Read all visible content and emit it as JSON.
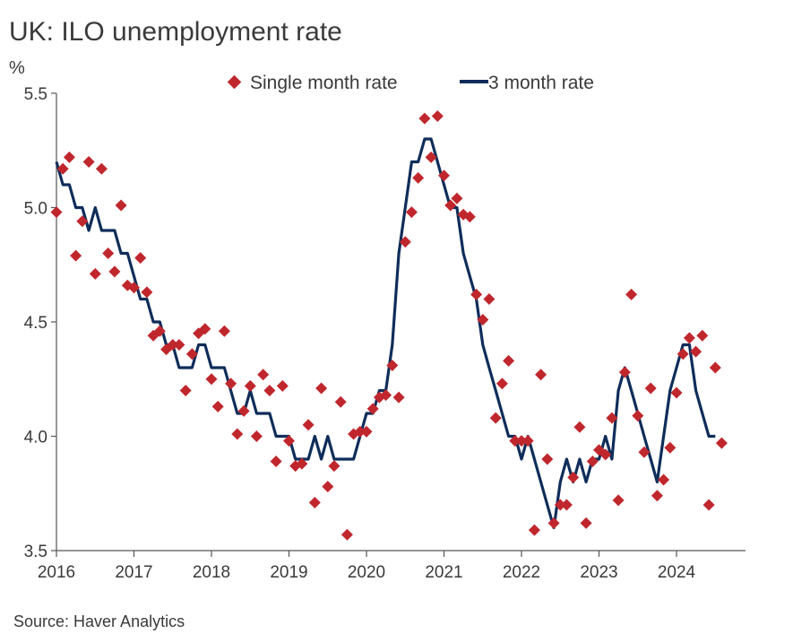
{
  "chart_data": {
    "type": "line",
    "title": "UK: ILO unemployment rate",
    "ylabel": "%",
    "xlabel": "",
    "source": "Source: Haver Analytics",
    "ylim": [
      3.5,
      5.5
    ],
    "xlim": [
      2016.0,
      2024.9
    ],
    "yticks": [
      "3.5",
      "4.0",
      "4.5",
      "5.0",
      "5.5"
    ],
    "ytick_values": [
      3.5,
      4.0,
      4.5,
      5.0,
      5.5
    ],
    "xticks": [
      "2016",
      "2017",
      "2018",
      "2019",
      "2020",
      "2021",
      "2022",
      "2023",
      "2024"
    ],
    "xtick_values": [
      2016,
      2017,
      2018,
      2019,
      2020,
      2021,
      2022,
      2023,
      2024
    ],
    "colors": {
      "single": "#c0272d",
      "three": "#0f2d5a",
      "axis": "#555555"
    },
    "series": [
      {
        "name": "Single month rate",
        "kind": "scatter",
        "x": [
          2016.0,
          2016.083,
          2016.167,
          2016.25,
          2016.333,
          2016.417,
          2016.5,
          2016.583,
          2016.667,
          2016.75,
          2016.833,
          2016.917,
          2017.0,
          2017.083,
          2017.167,
          2017.25,
          2017.333,
          2017.417,
          2017.5,
          2017.583,
          2017.667,
          2017.75,
          2017.833,
          2017.917,
          2018.0,
          2018.083,
          2018.167,
          2018.25,
          2018.333,
          2018.417,
          2018.5,
          2018.583,
          2018.667,
          2018.75,
          2018.833,
          2018.917,
          2019.0,
          2019.083,
          2019.167,
          2019.25,
          2019.333,
          2019.417,
          2019.5,
          2019.583,
          2019.667,
          2019.75,
          2019.833,
          2019.917,
          2020.0,
          2020.083,
          2020.167,
          2020.25,
          2020.333,
          2020.417,
          2020.5,
          2020.583,
          2020.667,
          2020.75,
          2020.833,
          2020.917,
          2021.0,
          2021.083,
          2021.167,
          2021.25,
          2021.333,
          2021.417,
          2021.5,
          2021.583,
          2021.667,
          2021.75,
          2021.833,
          2021.917,
          2022.0,
          2022.083,
          2022.167,
          2022.25,
          2022.333,
          2022.417,
          2022.5,
          2022.583,
          2022.667,
          2022.75,
          2022.833,
          2022.917,
          2023.0,
          2023.083,
          2023.167,
          2023.25,
          2023.333,
          2023.417,
          2023.5,
          2023.583,
          2023.667,
          2023.75,
          2023.833,
          2023.917,
          2024.0,
          2024.083,
          2024.167,
          2024.25,
          2024.333,
          2024.417,
          2024.5,
          2024.583
        ],
        "values": [
          4.98,
          5.17,
          5.22,
          4.79,
          4.94,
          5.2,
          4.71,
          5.17,
          4.8,
          4.72,
          5.01,
          4.66,
          4.65,
          4.78,
          4.63,
          4.44,
          4.46,
          4.38,
          4.4,
          4.4,
          4.2,
          4.36,
          4.45,
          4.47,
          4.25,
          4.13,
          4.46,
          4.23,
          4.01,
          4.11,
          4.22,
          4.0,
          4.27,
          4.2,
          3.89,
          4.22,
          3.98,
          3.87,
          3.88,
          4.05,
          3.71,
          4.21,
          3.78,
          3.87,
          4.15,
          3.57,
          4.01,
          4.02,
          4.02,
          4.12,
          4.17,
          4.18,
          4.31,
          4.17,
          4.85,
          4.98,
          5.13,
          5.39,
          5.22,
          5.4,
          5.14,
          5.01,
          5.04,
          4.97,
          4.96,
          4.62,
          4.51,
          4.6,
          4.08,
          4.23,
          4.33,
          3.98,
          3.98,
          3.98,
          3.59,
          4.27,
          3.9,
          3.62,
          3.7,
          3.7,
          3.82,
          4.04,
          3.62,
          3.89,
          3.94,
          3.92,
          4.08,
          3.72,
          4.28,
          4.62,
          4.09,
          3.93,
          4.21,
          3.74,
          3.81,
          3.95,
          4.19,
          4.36,
          4.43,
          4.37,
          4.44,
          3.7,
          4.3,
          3.97
        ]
      },
      {
        "name": "3 month rate",
        "kind": "line",
        "x": [
          2016.0,
          2016.083,
          2016.167,
          2016.25,
          2016.333,
          2016.417,
          2016.5,
          2016.583,
          2016.667,
          2016.75,
          2016.833,
          2016.917,
          2017.0,
          2017.083,
          2017.167,
          2017.25,
          2017.333,
          2017.417,
          2017.5,
          2017.583,
          2017.667,
          2017.75,
          2017.833,
          2017.917,
          2018.0,
          2018.083,
          2018.167,
          2018.25,
          2018.333,
          2018.417,
          2018.5,
          2018.583,
          2018.667,
          2018.75,
          2018.833,
          2018.917,
          2019.0,
          2019.083,
          2019.167,
          2019.25,
          2019.333,
          2019.417,
          2019.5,
          2019.583,
          2019.667,
          2019.75,
          2019.833,
          2019.917,
          2020.0,
          2020.083,
          2020.167,
          2020.25,
          2020.333,
          2020.417,
          2020.5,
          2020.583,
          2020.667,
          2020.75,
          2020.833,
          2020.917,
          2021.0,
          2021.083,
          2021.167,
          2021.25,
          2021.333,
          2021.417,
          2021.5,
          2021.583,
          2021.667,
          2021.75,
          2021.833,
          2021.917,
          2022.0,
          2022.083,
          2022.167,
          2022.25,
          2022.333,
          2022.417,
          2022.5,
          2022.583,
          2022.667,
          2022.75,
          2022.833,
          2022.917,
          2023.0,
          2023.083,
          2023.167,
          2023.25,
          2023.333,
          2023.417,
          2023.5,
          2023.583,
          2023.667,
          2023.75,
          2023.833,
          2023.917,
          2024.0,
          2024.083,
          2024.167,
          2024.25,
          2024.333,
          2024.417,
          2024.5
        ],
        "values": [
          5.2,
          5.1,
          5.1,
          5.0,
          5.0,
          4.9,
          5.0,
          4.9,
          4.9,
          4.9,
          4.8,
          4.8,
          4.7,
          4.6,
          4.6,
          4.5,
          4.5,
          4.4,
          4.4,
          4.3,
          4.3,
          4.3,
          4.4,
          4.4,
          4.3,
          4.3,
          4.3,
          4.2,
          4.1,
          4.1,
          4.2,
          4.1,
          4.1,
          4.1,
          4.0,
          4.0,
          4.0,
          3.9,
          3.9,
          3.9,
          4.0,
          3.9,
          4.0,
          3.9,
          3.9,
          3.9,
          3.9,
          4.0,
          4.1,
          4.1,
          4.2,
          4.2,
          4.4,
          4.8,
          5.0,
          5.2,
          5.2,
          5.3,
          5.3,
          5.2,
          5.1,
          5.0,
          5.0,
          4.8,
          4.7,
          4.6,
          4.4,
          4.3,
          4.2,
          4.1,
          4.0,
          4.0,
          3.9,
          4.0,
          3.9,
          3.8,
          3.7,
          3.6,
          3.8,
          3.9,
          3.8,
          3.9,
          3.8,
          3.9,
          3.9,
          4.0,
          3.9,
          4.2,
          4.3,
          4.2,
          4.1,
          4.0,
          3.9,
          3.8,
          4.0,
          4.2,
          4.3,
          4.4,
          4.4,
          4.2,
          4.1,
          4.0,
          4.0
        ]
      }
    ],
    "legend": [
      "Single month rate",
      "3 month rate"
    ],
    "legend_position": "top-center",
    "grid": false
  }
}
